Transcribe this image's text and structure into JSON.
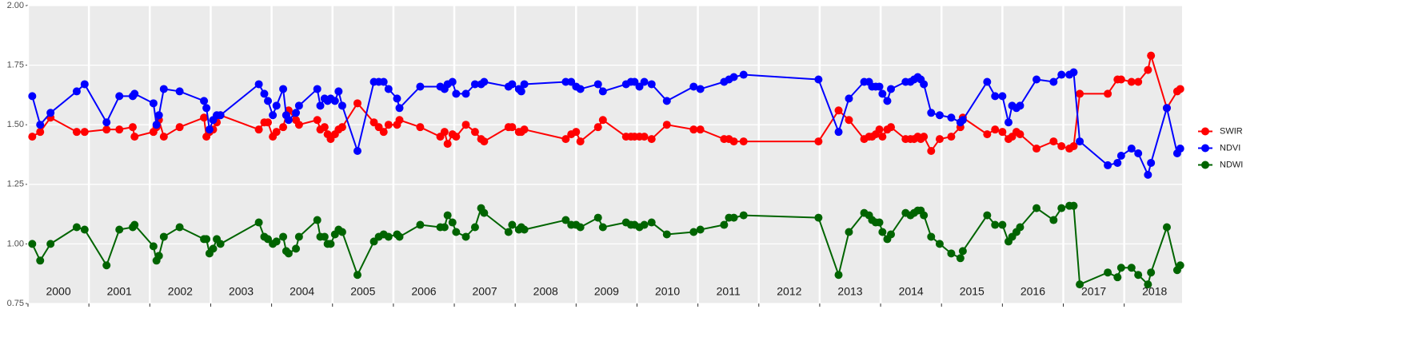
{
  "chart_data": {
    "type": "line",
    "x": [
      2000.07,
      2000.2,
      2000.37,
      2000.8,
      2000.93,
      2001.29,
      2001.5,
      2001.72,
      2001.75,
      2002.06,
      2002.11,
      2002.15,
      2002.23,
      2002.49,
      2002.89,
      2002.93,
      2002.98,
      2003.04,
      2003.1,
      2003.16,
      2003.79,
      2003.88,
      2003.94,
      2004.02,
      2004.08,
      2004.19,
      2004.24,
      2004.28,
      2004.4,
      2004.45,
      2004.75,
      2004.8,
      2004.87,
      2004.92,
      2004.97,
      2005.04,
      2005.1,
      2005.16,
      2005.41,
      2005.68,
      2005.76,
      2005.84,
      2005.92,
      2006.06,
      2006.1,
      2006.44,
      2006.77,
      2006.84,
      2006.89,
      2006.97,
      2007.03,
      2007.19,
      2007.34,
      2007.44,
      2007.49,
      2007.89,
      2007.95,
      2008.06,
      2008.1,
      2008.15,
      2008.83,
      2008.92,
      2009.0,
      2009.07,
      2009.36,
      2009.44,
      2009.82,
      2009.9,
      2009.96,
      2010.04,
      2010.12,
      2010.24,
      2010.49,
      2010.93,
      2011.04,
      2011.43,
      2011.51,
      2011.59,
      2011.75,
      2012.98,
      2013.31,
      2013.48,
      2013.73,
      2013.81,
      2013.86,
      2013.92,
      2013.98,
      2014.03,
      2014.11,
      2014.17,
      2014.41,
      2014.49,
      2014.55,
      2014.61,
      2014.66,
      2014.71,
      2014.83,
      2014.97,
      2015.16,
      2015.31,
      2015.35,
      2015.75,
      2015.88,
      2016.0,
      2016.1,
      2016.16,
      2016.23,
      2016.29,
      2016.56,
      2016.84,
      2016.97,
      2017.1,
      2017.17,
      2017.27,
      2017.73,
      2017.89,
      2017.95,
      2018.12,
      2018.23,
      2018.39,
      2018.44,
      2018.7,
      2018.87,
      2018.92
    ],
    "series": [
      {
        "name": "SWIR",
        "color": "#ff0000",
        "values": [
          1.45,
          1.47,
          1.53,
          1.47,
          1.47,
          1.48,
          1.48,
          1.49,
          1.45,
          1.47,
          1.49,
          1.52,
          1.45,
          1.49,
          1.53,
          1.45,
          1.47,
          1.48,
          1.51,
          1.54,
          1.48,
          1.51,
          1.51,
          1.45,
          1.47,
          1.49,
          1.54,
          1.56,
          1.52,
          1.5,
          1.52,
          1.48,
          1.49,
          1.46,
          1.44,
          1.46,
          1.48,
          1.49,
          1.59,
          1.51,
          1.49,
          1.47,
          1.5,
          1.5,
          1.52,
          1.49,
          1.45,
          1.47,
          1.42,
          1.46,
          1.45,
          1.5,
          1.47,
          1.44,
          1.43,
          1.49,
          1.49,
          1.47,
          1.47,
          1.48,
          1.44,
          1.46,
          1.47,
          1.43,
          1.49,
          1.52,
          1.45,
          1.45,
          1.45,
          1.45,
          1.45,
          1.44,
          1.5,
          1.48,
          1.48,
          1.44,
          1.44,
          1.43,
          1.43,
          1.43,
          1.56,
          1.52,
          1.44,
          1.45,
          1.45,
          1.46,
          1.48,
          1.45,
          1.48,
          1.49,
          1.44,
          1.44,
          1.44,
          1.45,
          1.44,
          1.45,
          1.39,
          1.44,
          1.45,
          1.49,
          1.53,
          1.46,
          1.48,
          1.47,
          1.44,
          1.45,
          1.47,
          1.46,
          1.4,
          1.43,
          1.41,
          1.4,
          1.41,
          1.63,
          1.63,
          1.69,
          1.69,
          1.68,
          1.68,
          1.73,
          1.79,
          1.57,
          1.64,
          1.65
        ]
      },
      {
        "name": "NDVI",
        "color": "#0000ff",
        "values": [
          1.62,
          1.5,
          1.55,
          1.64,
          1.67,
          1.51,
          1.62,
          1.62,
          1.63,
          1.59,
          1.5,
          1.54,
          1.65,
          1.64,
          1.6,
          1.57,
          1.48,
          1.52,
          1.54,
          1.54,
          1.67,
          1.63,
          1.6,
          1.54,
          1.58,
          1.65,
          1.54,
          1.52,
          1.55,
          1.58,
          1.65,
          1.58,
          1.61,
          1.6,
          1.61,
          1.6,
          1.64,
          1.58,
          1.39,
          1.68,
          1.68,
          1.68,
          1.65,
          1.61,
          1.57,
          1.66,
          1.66,
          1.65,
          1.67,
          1.68,
          1.63,
          1.63,
          1.67,
          1.67,
          1.68,
          1.66,
          1.67,
          1.65,
          1.64,
          1.67,
          1.68,
          1.68,
          1.66,
          1.65,
          1.67,
          1.64,
          1.67,
          1.68,
          1.68,
          1.66,
          1.68,
          1.67,
          1.6,
          1.66,
          1.65,
          1.68,
          1.69,
          1.7,
          1.71,
          1.69,
          1.47,
          1.61,
          1.68,
          1.68,
          1.66,
          1.66,
          1.66,
          1.63,
          1.6,
          1.65,
          1.68,
          1.68,
          1.69,
          1.7,
          1.69,
          1.67,
          1.55,
          1.54,
          1.53,
          1.51,
          1.52,
          1.68,
          1.62,
          1.62,
          1.51,
          1.58,
          1.57,
          1.58,
          1.69,
          1.68,
          1.71,
          1.71,
          1.72,
          1.43,
          1.33,
          1.34,
          1.37,
          1.4,
          1.38,
          1.29,
          1.34,
          1.57,
          1.38,
          1.4
        ]
      },
      {
        "name": "NDWI",
        "color": "#006400",
        "values": [
          1.0,
          0.93,
          1.0,
          1.07,
          1.06,
          0.91,
          1.06,
          1.07,
          1.08,
          0.99,
          0.93,
          0.95,
          1.03,
          1.07,
          1.02,
          1.02,
          0.96,
          0.98,
          1.02,
          1.0,
          1.09,
          1.03,
          1.02,
          1.0,
          1.01,
          1.03,
          0.97,
          0.96,
          0.98,
          1.03,
          1.1,
          1.03,
          1.03,
          1.0,
          1.0,
          1.04,
          1.06,
          1.05,
          0.87,
          1.01,
          1.03,
          1.04,
          1.03,
          1.04,
          1.03,
          1.08,
          1.07,
          1.07,
          1.12,
          1.09,
          1.05,
          1.03,
          1.07,
          1.15,
          1.13,
          1.05,
          1.08,
          1.06,
          1.07,
          1.06,
          1.1,
          1.08,
          1.08,
          1.07,
          1.11,
          1.07,
          1.09,
          1.08,
          1.08,
          1.07,
          1.08,
          1.09,
          1.04,
          1.05,
          1.06,
          1.08,
          1.11,
          1.11,
          1.12,
          1.11,
          0.87,
          1.05,
          1.13,
          1.12,
          1.1,
          1.09,
          1.09,
          1.05,
          1.02,
          1.04,
          1.13,
          1.12,
          1.13,
          1.14,
          1.14,
          1.12,
          1.03,
          1.0,
          0.96,
          0.94,
          0.97,
          1.12,
          1.08,
          1.08,
          1.01,
          1.03,
          1.05,
          1.07,
          1.15,
          1.1,
          1.15,
          1.16,
          1.16,
          0.83,
          0.88,
          0.86,
          0.9,
          0.9,
          0.87,
          0.83,
          0.88,
          1.07,
          0.89,
          0.91
        ]
      }
    ],
    "xlim": [
      2000,
      2018.95
    ],
    "xticks": [
      2000,
      2001,
      2002,
      2003,
      2004,
      2005,
      2006,
      2007,
      2008,
      2009,
      2010,
      2011,
      2012,
      2013,
      2014,
      2015,
      2016,
      2017,
      2018
    ],
    "ylim": [
      0.75,
      2.0
    ],
    "yticks": [
      {
        "value": 0.75,
        "label": "0.75"
      },
      {
        "value": 1.0,
        "label": "1.00"
      },
      {
        "value": 1.25,
        "label": "1.25"
      },
      {
        "value": 1.5,
        "label": "1.50"
      },
      {
        "value": 1.75,
        "label": "1.75"
      },
      {
        "value": 2.0,
        "label": "2.00"
      }
    ],
    "grid": true,
    "legend": "right"
  }
}
